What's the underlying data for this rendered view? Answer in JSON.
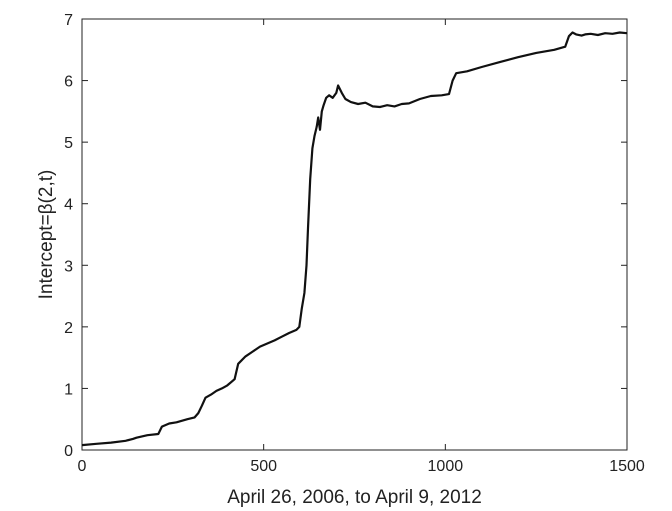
{
  "chart_data": {
    "type": "line",
    "title": "",
    "xlabel": "April 26, 2006, to April 9, 2012",
    "ylabel": "Intercept=β(2,t)",
    "xlim": [
      0,
      1500
    ],
    "ylim": [
      0,
      7
    ],
    "xticks": [
      0,
      500,
      1000,
      1500
    ],
    "yticks": [
      0,
      1,
      2,
      3,
      4,
      5,
      6,
      7
    ],
    "grid": false,
    "legend": "none",
    "series": [
      {
        "color": "#111111",
        "points": [
          [
            0,
            0.08
          ],
          [
            40,
            0.1
          ],
          [
            80,
            0.12
          ],
          [
            120,
            0.15
          ],
          [
            140,
            0.18
          ],
          [
            150,
            0.2
          ],
          [
            180,
            0.24
          ],
          [
            210,
            0.26
          ],
          [
            220,
            0.38
          ],
          [
            240,
            0.43
          ],
          [
            260,
            0.45
          ],
          [
            290,
            0.5
          ],
          [
            310,
            0.53
          ],
          [
            320,
            0.6
          ],
          [
            330,
            0.72
          ],
          [
            340,
            0.85
          ],
          [
            355,
            0.9
          ],
          [
            370,
            0.96
          ],
          [
            385,
            1.0
          ],
          [
            400,
            1.05
          ],
          [
            420,
            1.15
          ],
          [
            430,
            1.4
          ],
          [
            450,
            1.52
          ],
          [
            470,
            1.6
          ],
          [
            490,
            1.68
          ],
          [
            510,
            1.73
          ],
          [
            530,
            1.78
          ],
          [
            550,
            1.84
          ],
          [
            570,
            1.9
          ],
          [
            590,
            1.95
          ],
          [
            598,
            2.0
          ],
          [
            605,
            2.3
          ],
          [
            612,
            2.55
          ],
          [
            618,
            3.0
          ],
          [
            622,
            3.6
          ],
          [
            628,
            4.4
          ],
          [
            634,
            4.9
          ],
          [
            640,
            5.1
          ],
          [
            646,
            5.25
          ],
          [
            650,
            5.4
          ],
          [
            655,
            5.2
          ],
          [
            660,
            5.5
          ],
          [
            665,
            5.6
          ],
          [
            672,
            5.72
          ],
          [
            680,
            5.76
          ],
          [
            690,
            5.72
          ],
          [
            700,
            5.8
          ],
          [
            705,
            5.92
          ],
          [
            715,
            5.8
          ],
          [
            725,
            5.7
          ],
          [
            740,
            5.65
          ],
          [
            760,
            5.62
          ],
          [
            780,
            5.64
          ],
          [
            800,
            5.58
          ],
          [
            820,
            5.57
          ],
          [
            840,
            5.6
          ],
          [
            860,
            5.58
          ],
          [
            880,
            5.62
          ],
          [
            900,
            5.63
          ],
          [
            930,
            5.7
          ],
          [
            960,
            5.75
          ],
          [
            990,
            5.76
          ],
          [
            1010,
            5.78
          ],
          [
            1020,
            6.0
          ],
          [
            1030,
            6.12
          ],
          [
            1060,
            6.15
          ],
          [
            1100,
            6.22
          ],
          [
            1150,
            6.3
          ],
          [
            1200,
            6.38
          ],
          [
            1250,
            6.45
          ],
          [
            1300,
            6.5
          ],
          [
            1330,
            6.55
          ],
          [
            1340,
            6.72
          ],
          [
            1350,
            6.78
          ],
          [
            1360,
            6.75
          ],
          [
            1375,
            6.73
          ],
          [
            1385,
            6.75
          ],
          [
            1400,
            6.76
          ],
          [
            1420,
            6.74
          ],
          [
            1440,
            6.77
          ],
          [
            1460,
            6.76
          ],
          [
            1480,
            6.78
          ],
          [
            1500,
            6.77
          ]
        ]
      }
    ]
  }
}
